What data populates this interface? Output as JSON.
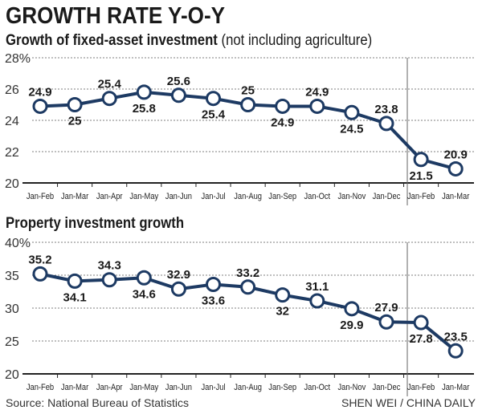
{
  "title": "GROWTH RATE Y-O-Y",
  "credits": {
    "source": "Source: National Bureau of Statistics",
    "byline": "SHEN WEI / CHINA DAILY"
  },
  "colors": {
    "line": "#1d3a63",
    "marker_fill": "#ffffff",
    "grid": "#555555",
    "text": "#1a1a1a"
  },
  "chart_data": [
    {
      "type": "line",
      "title": "Growth of fixed-asset investment",
      "subtitle": "(not including agriculture)",
      "categories": [
        "Jan-Feb",
        "Jan-Mar",
        "Jan-Apr",
        "Jan-May",
        "Jan-Jun",
        "Jan-Jul",
        "Jan-Aug",
        "Jan-Sep",
        "Jan-Oct",
        "Jan-Nov",
        "Jan-Dec",
        "Jan-Feb",
        "Jan-Mar"
      ],
      "values": [
        24.9,
        25,
        25.4,
        25.8,
        25.6,
        25.4,
        25,
        24.9,
        24.9,
        24.5,
        23.8,
        21.5,
        20.9
      ],
      "data_labels": [
        "24.9",
        "25",
        "25.4",
        "25.8",
        "25.6",
        "25.4",
        "25",
        "24.9",
        "24.9",
        "24.5",
        "23.8",
        "21.5",
        "20.9"
      ],
      "ylim": [
        20,
        28
      ],
      "yticks": [
        "20",
        "22",
        "24",
        "26",
        "28%"
      ],
      "grid": true,
      "year_divider_after": "Jan-Dec"
    },
    {
      "type": "line",
      "title": "Property investment growth",
      "categories": [
        "Jan-Feb",
        "Jan-Mar",
        "Jan-Apr",
        "Jan-May",
        "Jan-Jun",
        "Jan-Jul",
        "Jan-Aug",
        "Jan-Sep",
        "Jan-Oct",
        "Jan-Nov",
        "Jan-Dec",
        "Jan-Feb",
        "Jan-Mar"
      ],
      "values": [
        35.2,
        34.1,
        34.3,
        34.6,
        32.9,
        33.6,
        33.2,
        32,
        31.1,
        29.9,
        27.9,
        27.8,
        23.5
      ],
      "data_labels": [
        "35.2",
        "34.1",
        "34.3",
        "34.6",
        "32.9",
        "33.6",
        "33.2",
        "32",
        "31.1",
        "29.9",
        "27.9",
        "27.8",
        "23.5"
      ],
      "ylim": [
        20,
        40
      ],
      "yticks": [
        "20",
        "25",
        "30",
        "35",
        "40%"
      ],
      "grid": true,
      "year_divider_after": "Jan-Dec"
    }
  ]
}
